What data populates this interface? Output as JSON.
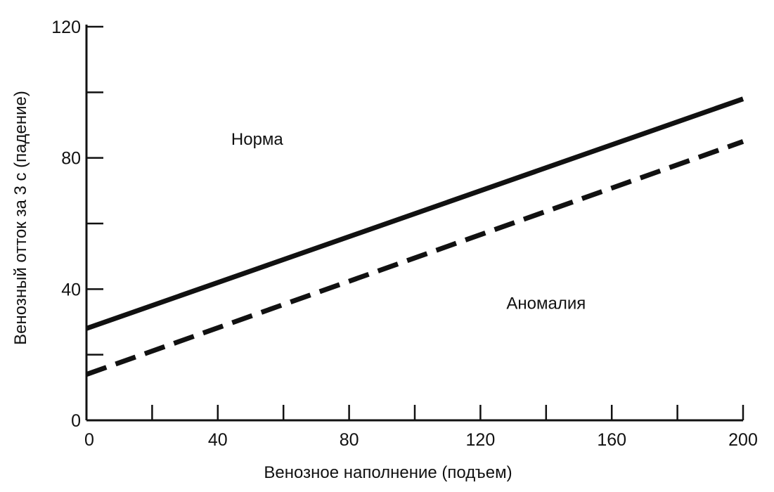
{
  "chart_data": {
    "type": "line",
    "title": "",
    "xlabel": "Венозное наполнение (подъем)",
    "ylabel": "Венозный отток за 3 с (падение)",
    "xlim": [
      0,
      200
    ],
    "ylim": [
      0,
      120
    ],
    "x_ticks_major": [
      0,
      40,
      80,
      120,
      160,
      200
    ],
    "x_ticks_minor": [
      20,
      60,
      100,
      140,
      180
    ],
    "y_ticks_major": [
      0,
      40,
      80,
      120
    ],
    "y_ticks_minor": [
      20,
      60,
      100
    ],
    "x_tick_labels": [
      "0",
      "40",
      "80",
      "120",
      "160",
      "200"
    ],
    "y_tick_labels": [
      "0",
      "40",
      "80",
      "120"
    ],
    "grid": false,
    "legend": "none",
    "series": [
      {
        "style": "solid",
        "color": "#111111",
        "x": [
          0,
          200
        ],
        "y": [
          28,
          98
        ]
      },
      {
        "style": "dashed",
        "color": "#111111",
        "x": [
          0,
          200
        ],
        "y": [
          14,
          85
        ]
      }
    ],
    "annotations": [
      {
        "text": "Норма",
        "x": 52,
        "y": 84
      },
      {
        "text": "Аномалия",
        "x": 140,
        "y": 34
      }
    ]
  }
}
